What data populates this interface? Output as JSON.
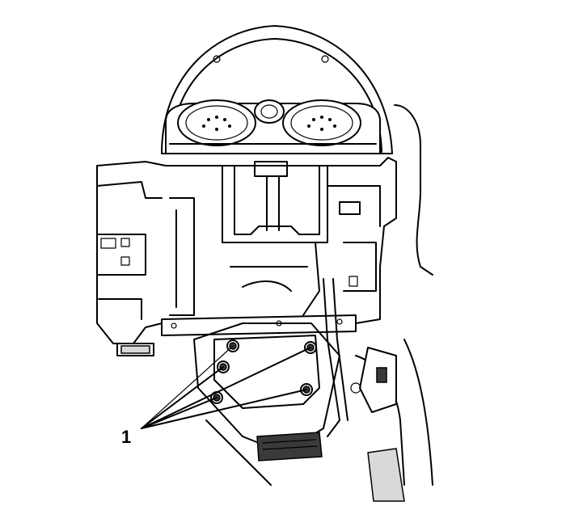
{
  "callouts": [
    {
      "label": "1"
    }
  ]
}
